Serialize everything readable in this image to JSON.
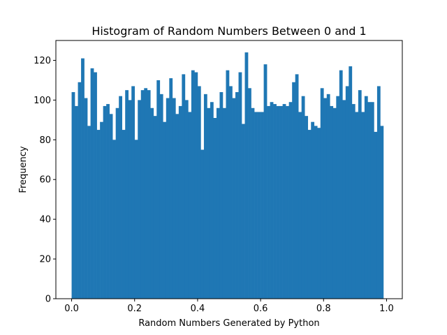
{
  "chart_data": {
    "type": "bar",
    "title": "Histogram of Random Numbers Between 0 and 1",
    "xlabel": "Random Numbers Generated by Python",
    "ylabel": "Frequency",
    "bin_range": [
      0,
      1
    ],
    "bin_count": 100,
    "values": [
      104,
      97,
      109,
      121,
      101,
      87,
      116,
      114,
      85,
      89,
      97,
      98,
      93,
      80,
      96,
      102,
      85,
      105,
      100,
      107,
      80,
      100,
      105,
      106,
      105,
      96,
      92,
      110,
      103,
      89,
      101,
      111,
      101,
      93,
      97,
      113,
      100,
      94,
      115,
      114,
      107,
      75,
      103,
      96,
      99,
      91,
      96,
      104,
      96,
      115,
      107,
      101,
      104,
      114,
      88,
      124,
      106,
      96,
      94,
      94,
      94,
      118,
      97,
      99,
      98,
      97,
      97,
      98,
      97,
      99,
      109,
      113,
      94,
      102,
      92,
      85,
      89,
      87,
      86,
      106,
      101,
      103,
      97,
      96,
      102,
      115,
      100,
      107,
      117,
      98,
      94,
      105,
      94,
      102,
      99,
      99,
      84,
      107,
      87,
      0
    ],
    "xlim": [
      -0.05,
      1.05
    ],
    "ylim": [
      0,
      130
    ],
    "xticks": [
      0.0,
      0.2,
      0.4,
      0.6,
      0.8,
      1.0
    ],
    "xtick_labels": [
      "0.0",
      "0.2",
      "0.4",
      "0.6",
      "0.8",
      "1.0"
    ],
    "yticks": [
      0,
      20,
      40,
      60,
      80,
      100,
      120
    ],
    "ytick_labels": [
      "0",
      "20",
      "40",
      "60",
      "80",
      "100",
      "120"
    ],
    "bar_color": "#1f77b4",
    "grid": false,
    "legend": false
  }
}
